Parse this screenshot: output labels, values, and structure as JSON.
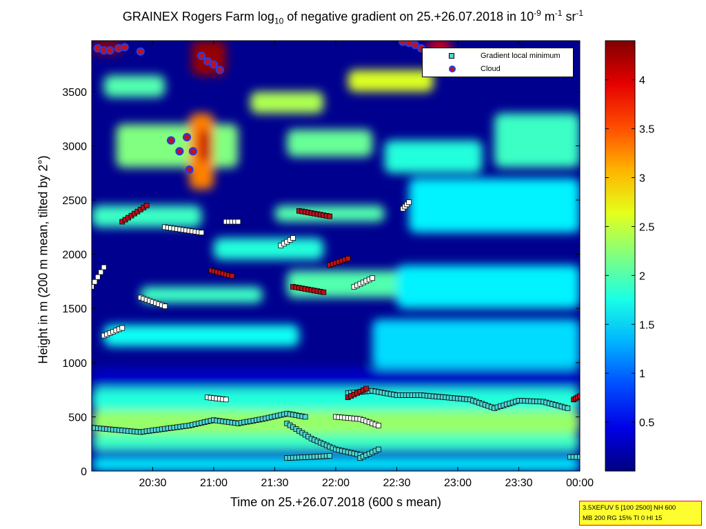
{
  "title": {
    "pre": "GRAINEX Rogers Farm log",
    "sub": "10",
    "mid": " of negative gradient on 25.+26.07.2018 in 10",
    "sup1": "-9",
    "mid2": " m",
    "sup2": "-1",
    "mid3": " sr",
    "sup3": "-1"
  },
  "legend": {
    "items": [
      {
        "label": "Gradient local minimum",
        "marker": "square",
        "color": "#4bd6d6"
      },
      {
        "label": "Cloud",
        "marker": "circle",
        "color": "#c0101a",
        "edge": "#2a3be0"
      }
    ]
  },
  "info_box": {
    "line1": "3.5XEFUV 5 [100 2500] NH 600",
    "line2": "MB 200 RG 15% TI 0 HI 15"
  },
  "chart_data": {
    "type": "heatmap",
    "xlabel": "Time on 25.+26.07.2018 (600 s mean)",
    "ylabel": "Height in m (200 m mean, tilted by 2°)",
    "x_tick_labels": [
      "20:30",
      "21:00",
      "21:30",
      "22:00",
      "22:30",
      "23:00",
      "23:30",
      "00:00"
    ],
    "x_tick_hours": [
      20.5,
      21.0,
      21.5,
      22.0,
      22.5,
      23.0,
      23.5,
      24.0
    ],
    "xlim_hours": [
      20.0,
      24.0
    ],
    "y_tick_labels": [
      "0",
      "500",
      "1000",
      "1500",
      "2000",
      "2500",
      "3000",
      "3500"
    ],
    "y_ticks": [
      0,
      500,
      1000,
      1500,
      2000,
      2500,
      3000,
      3500
    ],
    "ylim": [
      0,
      3970
    ],
    "colorbar": {
      "tick_labels": [
        "0.5",
        "1",
        "1.5",
        "2",
        "2.5",
        "3",
        "3.5",
        "4"
      ],
      "ticks": [
        0.5,
        1,
        1.5,
        2,
        2.5,
        3,
        3.5,
        4
      ],
      "range": [
        0,
        4.4
      ],
      "colormap": "jet"
    },
    "layers": [
      {
        "t0": 20.0,
        "t1": 24.0,
        "h0": 0,
        "h1": 110,
        "v": 1.6
      },
      {
        "t0": 20.0,
        "t1": 24.0,
        "h0": 110,
        "h1": 200,
        "v": 0.3
      },
      {
        "t0": 20.0,
        "t1": 24.0,
        "h0": 200,
        "h1": 340,
        "v": 1.9
      },
      {
        "t0": 20.0,
        "t1": 24.0,
        "h0": 340,
        "h1": 560,
        "v": 2.3
      },
      {
        "t0": 20.0,
        "t1": 24.0,
        "h0": 560,
        "h1": 760,
        "v": 1.8
      },
      {
        "t0": 20.0,
        "t1": 24.0,
        "h0": 760,
        "h1": 950,
        "v": 0.3
      },
      {
        "t0": 22.3,
        "t1": 24.0,
        "h0": 950,
        "h1": 1400,
        "v": 1.5
      },
      {
        "t0": 20.1,
        "t1": 21.7,
        "h0": 1150,
        "h1": 1350,
        "v": 1.7
      },
      {
        "t0": 20.4,
        "t1": 21.4,
        "h0": 1550,
        "h1": 1700,
        "v": 1.9
      },
      {
        "t0": 21.6,
        "t1": 22.6,
        "h0": 1600,
        "h1": 1850,
        "v": 2.0
      },
      {
        "t0": 22.5,
        "t1": 24.0,
        "h0": 1500,
        "h1": 1900,
        "v": 1.6
      },
      {
        "t0": 20.0,
        "t1": 20.9,
        "h0": 2250,
        "h1": 2450,
        "v": 1.9
      },
      {
        "t0": 21.0,
        "t1": 21.9,
        "h0": 1950,
        "h1": 2150,
        "v": 1.8
      },
      {
        "t0": 21.5,
        "t1": 22.4,
        "h0": 2300,
        "h1": 2450,
        "v": 2.0
      },
      {
        "t0": 22.6,
        "t1": 24.0,
        "h0": 2200,
        "h1": 2700,
        "v": 1.6
      },
      {
        "t0": 20.2,
        "t1": 21.2,
        "h0": 2800,
        "h1": 3200,
        "v": 2.2
      },
      {
        "t0": 21.6,
        "t1": 22.3,
        "h0": 2900,
        "h1": 3150,
        "v": 2.1
      },
      {
        "t0": 22.4,
        "t1": 23.2,
        "h0": 2750,
        "h1": 3050,
        "v": 1.8
      },
      {
        "t0": 23.3,
        "t1": 24.0,
        "h0": 2800,
        "h1": 3300,
        "v": 1.9
      },
      {
        "t0": 20.1,
        "t1": 20.6,
        "h0": 3450,
        "h1": 3650,
        "v": 2.0
      },
      {
        "t0": 21.3,
        "t1": 21.9,
        "h0": 3300,
        "h1": 3500,
        "v": 2.4
      },
      {
        "t0": 22.1,
        "t1": 22.8,
        "h0": 3500,
        "h1": 3700,
        "v": 2.6
      },
      {
        "t0": 20.8,
        "t1": 21.0,
        "h0": 2600,
        "h1": 3300,
        "v": 3.3
      },
      {
        "t0": 20.88,
        "t1": 20.98,
        "h0": 2850,
        "h1": 3150,
        "v": 4.1
      },
      {
        "t0": 20.82,
        "t1": 21.1,
        "h0": 3650,
        "h1": 3970,
        "v": 4.3
      },
      {
        "t0": 20.0,
        "t1": 20.25,
        "h0": 3850,
        "h1": 3970,
        "v": 4.3
      },
      {
        "t0": 22.75,
        "t1": 22.95,
        "h0": 3870,
        "h1": 3970,
        "v": 3.9
      }
    ],
    "minima_lines": [
      {
        "t": [
          20.0,
          20.2,
          20.4,
          20.6,
          20.8,
          21.0,
          21.2,
          21.4,
          21.6,
          21.75
        ],
        "h": [
          400,
          380,
          360,
          390,
          420,
          470,
          440,
          480,
          530,
          500
        ],
        "color": "#4bd6d6"
      },
      {
        "t": [
          21.6,
          21.8,
          22.0,
          22.2
        ],
        "h": [
          440,
          300,
          200,
          150
        ],
        "color": "#4bd6d6"
      },
      {
        "t": [
          21.6,
          21.8,
          21.95
        ],
        "h": [
          120,
          130,
          140
        ],
        "color": "#4bd6d6"
      },
      {
        "t": [
          22.0,
          22.2,
          22.35
        ],
        "h": [
          500,
          480,
          420
        ],
        "color": "#ffffff"
      },
      {
        "t": [
          22.2,
          22.35
        ],
        "h": [
          120,
          200
        ],
        "color": "#4bd6d6"
      },
      {
        "t": [
          22.1,
          22.3,
          22.5,
          22.7,
          22.9,
          23.1,
          23.3,
          23.5,
          23.7,
          23.9
        ],
        "h": [
          720,
          740,
          700,
          700,
          680,
          660,
          580,
          650,
          640,
          580
        ],
        "color": "#4bd6d6"
      },
      {
        "t": [
          22.1,
          22.25
        ],
        "h": [
          680,
          760
        ],
        "color": "#c0101a"
      },
      {
        "t": [
          20.95,
          21.1
        ],
        "h": [
          680,
          660
        ],
        "color": "#ffffff"
      },
      {
        "t": [
          23.95,
          24.0
        ],
        "h": [
          660,
          690
        ],
        "color": "#c0101a"
      },
      {
        "t": [
          23.92,
          24.0
        ],
        "h": [
          130,
          130
        ],
        "color": "#4bd6d6"
      },
      {
        "t": [
          20.0,
          20.1
        ],
        "h": [
          1700,
          1880
        ],
        "color": "#ffffff"
      },
      {
        "t": [
          20.1,
          20.25
        ],
        "h": [
          1250,
          1320
        ],
        "color": "#ffffff"
      },
      {
        "t": [
          20.4,
          20.6
        ],
        "h": [
          1600,
          1520
        ],
        "color": "#ffffff"
      },
      {
        "t": [
          20.25,
          20.45
        ],
        "h": [
          2300,
          2450
        ],
        "color": "#c0101a"
      },
      {
        "t": [
          20.6,
          20.9
        ],
        "h": [
          2250,
          2200
        ],
        "color": "#ffffff"
      },
      {
        "t": [
          20.98,
          21.15
        ],
        "h": [
          1850,
          1800
        ],
        "color": "#c0101a"
      },
      {
        "t": [
          21.1,
          21.2
        ],
        "h": [
          2300,
          2300
        ],
        "color": "#ffffff"
      },
      {
        "t": [
          21.55,
          21.65
        ],
        "h": [
          2080,
          2150
        ],
        "color": "#ffffff"
      },
      {
        "t": [
          21.65,
          21.9
        ],
        "h": [
          1700,
          1650
        ],
        "color": "#c0101a"
      },
      {
        "t": [
          21.7,
          21.95
        ],
        "h": [
          2400,
          2350
        ],
        "color": "#c0101a"
      },
      {
        "t": [
          21.95,
          22.1
        ],
        "h": [
          1900,
          1960
        ],
        "color": "#c0101a"
      },
      {
        "t": [
          22.15,
          22.3
        ],
        "h": [
          1700,
          1780
        ],
        "color": "#ffffff"
      },
      {
        "t": [
          22.55,
          22.6
        ],
        "h": [
          2420,
          2480
        ],
        "color": "#ffffff"
      }
    ],
    "clouds": [
      {
        "t": 20.05,
        "h": 3900
      },
      {
        "t": 20.1,
        "h": 3880
      },
      {
        "t": 20.15,
        "h": 3880
      },
      {
        "t": 20.22,
        "h": 3900
      },
      {
        "t": 20.27,
        "h": 3910
      },
      {
        "t": 20.4,
        "h": 3870
      },
      {
        "t": 20.65,
        "h": 3050
      },
      {
        "t": 20.72,
        "h": 2950
      },
      {
        "t": 20.78,
        "h": 3080
      },
      {
        "t": 20.8,
        "h": 2780
      },
      {
        "t": 20.83,
        "h": 2950
      },
      {
        "t": 20.9,
        "h": 3830
      },
      {
        "t": 20.95,
        "h": 3780
      },
      {
        "t": 21.0,
        "h": 3750
      },
      {
        "t": 21.05,
        "h": 3700
      },
      {
        "t": 22.55,
        "h": 3960
      },
      {
        "t": 22.6,
        "h": 3950
      },
      {
        "t": 22.65,
        "h": 3930
      },
      {
        "t": 22.7,
        "h": 3900
      },
      {
        "t": 22.75,
        "h": 3870
      },
      {
        "t": 22.8,
        "h": 3850
      }
    ]
  }
}
